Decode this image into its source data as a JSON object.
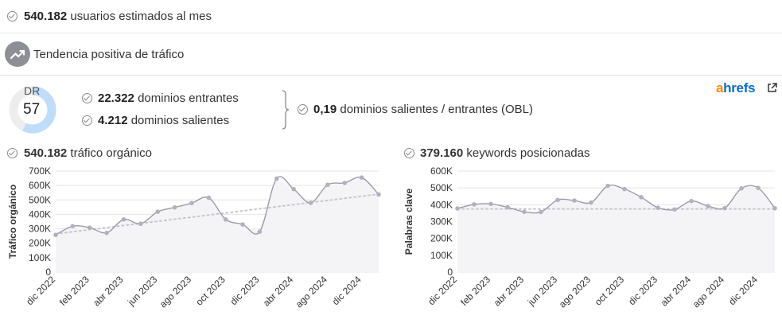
{
  "stats": {
    "users_value": "540.182",
    "users_label": "usuarios estimados al mes",
    "trend_label": "Tendencia positiva de tráfico",
    "dr_label": "DR",
    "dr_value": "57",
    "dr_percent": 57,
    "incoming_value": "22.322",
    "incoming_label": "dominios entrantes",
    "outgoing_value": "4.212",
    "outgoing_label": "dominios salientes",
    "obl_value": "0,19",
    "obl_label": "dominios salientes / entrantes (OBL)"
  },
  "brand": {
    "prefix": "a",
    "rest": "hrefs"
  },
  "colors": {
    "accent": "#0d6bc8",
    "brand_orange": "#ff8800",
    "dr_ring": "#bfdcf8",
    "line": "#9e9aa8"
  },
  "icons": {
    "check": "check-circle-icon",
    "trend": "trending-up-icon",
    "external": "external-link-icon"
  },
  "chart_data": [
    {
      "type": "line",
      "title_value": "540.182",
      "title_label": "tráfico orgánico",
      "ylabel": "Tráfico orgánico",
      "ylim": [
        0,
        700000
      ],
      "yticks": [
        "0",
        "100K",
        "200K",
        "300K",
        "400K",
        "500K",
        "600K",
        "700K"
      ],
      "xtick_labels": [
        "dic 2022",
        "feb 2023",
        "abr 2023",
        "jun 2023",
        "ago 2023",
        "oct 2023",
        "dic 2023",
        "abr 2024",
        "ago 2024",
        "dic 2024"
      ],
      "xtick_index": [
        0,
        2,
        4,
        6,
        8,
        10,
        12,
        14,
        16,
        18
      ],
      "values": [
        258000,
        318000,
        308000,
        272000,
        365000,
        335000,
        418000,
        448000,
        478000,
        515000,
        365000,
        330000,
        280000,
        648000,
        575000,
        480000,
        605000,
        618000,
        655000,
        538000
      ],
      "trend": [
        265000,
        540000
      ]
    },
    {
      "type": "line",
      "title_value": "379.160",
      "title_label": "keywords posicionadas",
      "ylabel": "Palabras clave",
      "ylim": [
        0,
        600000
      ],
      "yticks": [
        "0",
        "100K",
        "200K",
        "300K",
        "400K",
        "500K",
        "600K"
      ],
      "xtick_labels": [
        "dic 2022",
        "feb 2023",
        "abr 2023",
        "jun 2023",
        "ago 2023",
        "oct 2023",
        "dic 2023",
        "abr 2024",
        "ago 2024",
        "dic 2024"
      ],
      "xtick_index": [
        0,
        2,
        4,
        6,
        8,
        10,
        12,
        14,
        16,
        18
      ],
      "values": [
        378000,
        402000,
        405000,
        385000,
        358000,
        357000,
        428000,
        425000,
        413000,
        512000,
        493000,
        445000,
        382000,
        372000,
        422000,
        392000,
        380000,
        497000,
        500000,
        379000
      ],
      "trend": [
        375000,
        375000
      ]
    }
  ]
}
